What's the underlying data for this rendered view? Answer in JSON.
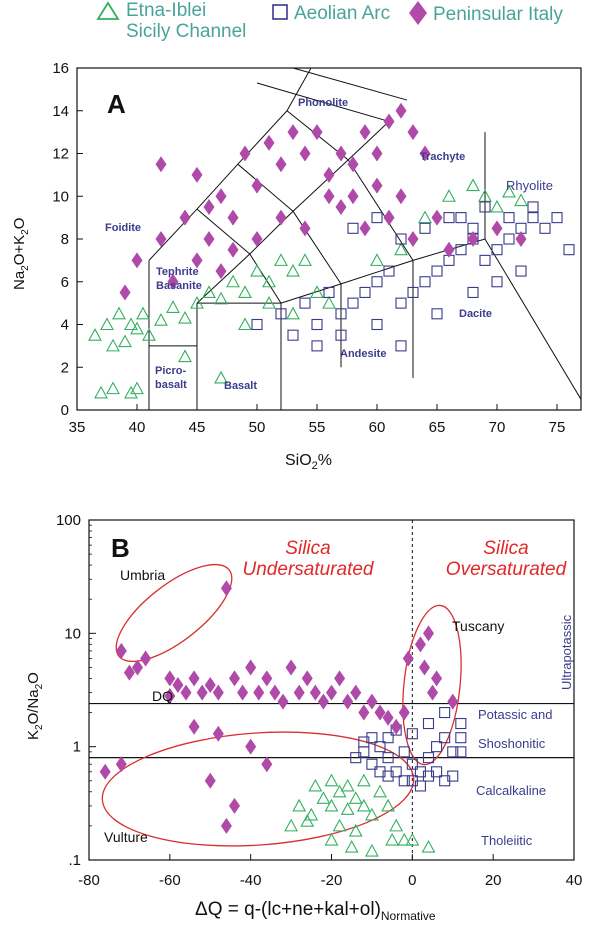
{
  "legend": {
    "etna": "Etna-Iblei",
    "etna2": "Sicily Channel",
    "aeolian": "Aeolian Arc",
    "peninsular": "Peninsular Italy"
  },
  "colors": {
    "etna": "#33b060",
    "aeolian": "#3a3a8a",
    "peninsular": "#b04aa8",
    "ellipse": "#d83030",
    "red_text": "#e02828",
    "field_text": "#3c3c8c",
    "legend_text": "#4aa39a"
  },
  "icons": {
    "etna": "open-triangle",
    "aeolian": "open-square",
    "peninsular": "filled-diamond"
  },
  "chart_data": [
    {
      "type": "scatter",
      "panel": "A",
      "xlabel": "SiO2%",
      "ylabel": "Na2O+K2O",
      "xlim": [
        35,
        77
      ],
      "ylim": [
        0,
        16
      ],
      "xticks": [
        "35",
        "40",
        "45",
        "50",
        "55",
        "60",
        "65",
        "70",
        "75"
      ],
      "yticks": [
        "0",
        "2",
        "4",
        "6",
        "8",
        "10",
        "12",
        "14",
        "16"
      ],
      "field_labels": [
        "Phonolite",
        "Trachyte",
        "Rhyolite",
        "Foidite",
        "Tephrite",
        "Basanite",
        "Dacite",
        "Andesite",
        "Picro-",
        "basalt",
        "Basalt"
      ],
      "grid": false,
      "series": [
        {
          "name": "Etna-Iblei Sicily Channel",
          "points": [
            [
              36.5,
              3.5
            ],
            [
              37.5,
              4
            ],
            [
              38,
              3
            ],
            [
              38.5,
              4.5
            ],
            [
              39,
              3.2
            ],
            [
              39.5,
              4
            ],
            [
              40,
              3.8
            ],
            [
              40.5,
              4.5
            ],
            [
              41,
              3.5
            ],
            [
              42,
              4.2
            ],
            [
              43,
              4.8
            ],
            [
              44,
              4.3
            ],
            [
              45,
              5
            ],
            [
              46,
              5.5
            ],
            [
              47,
              5.2
            ],
            [
              48,
              6
            ],
            [
              49,
              5.5
            ],
            [
              50,
              6.5
            ],
            [
              51,
              6
            ],
            [
              52,
              7
            ],
            [
              53,
              6.5
            ],
            [
              54,
              7
            ],
            [
              49,
              4
            ],
            [
              51,
              5
            ],
            [
              53,
              4.5
            ],
            [
              55,
              5.5
            ],
            [
              56,
              5
            ],
            [
              60,
              7
            ],
            [
              62,
              7.5
            ],
            [
              64,
              9
            ],
            [
              66,
              10
            ],
            [
              68,
              10.5
            ],
            [
              69,
              10
            ],
            [
              70,
              9.5
            ],
            [
              71,
              10.2
            ],
            [
              72,
              9.8
            ],
            [
              38,
              1
            ],
            [
              39.5,
              0.8
            ],
            [
              40,
              1
            ],
            [
              37,
              0.8
            ],
            [
              47,
              1.5
            ],
            [
              44,
              2.5
            ]
          ]
        },
        {
          "name": "Aeolian Arc",
          "points": [
            [
              50,
              4
            ],
            [
              52,
              4.5
            ],
            [
              53,
              3.5
            ],
            [
              54,
              5
            ],
            [
              55,
              4
            ],
            [
              56,
              5.5
            ],
            [
              57,
              4.5
            ],
            [
              58,
              5
            ],
            [
              59,
              5.5
            ],
            [
              60,
              6
            ],
            [
              61,
              6.5
            ],
            [
              62,
              5
            ],
            [
              63,
              5.5
            ],
            [
              64,
              6
            ],
            [
              65,
              6.5
            ],
            [
              66,
              7
            ],
            [
              67,
              7.5
            ],
            [
              68,
              8
            ],
            [
              69,
              7
            ],
            [
              70,
              7.5
            ],
            [
              71,
              8
            ],
            [
              72,
              8.5
            ],
            [
              73,
              9
            ],
            [
              74,
              8.5
            ],
            [
              75,
              9
            ],
            [
              76,
              7.5
            ],
            [
              67,
              9
            ],
            [
              69,
              9.5
            ],
            [
              71,
              9
            ],
            [
              73,
              9.5
            ],
            [
              58,
              8.5
            ],
            [
              60,
              9
            ],
            [
              62,
              8
            ],
            [
              64,
              8.5
            ],
            [
              66,
              9
            ],
            [
              68,
              8.5
            ],
            [
              55,
              3
            ],
            [
              57,
              3.5
            ],
            [
              60,
              4
            ],
            [
              62,
              3
            ],
            [
              65,
              4.5
            ],
            [
              68,
              5.5
            ],
            [
              70,
              6
            ],
            [
              72,
              6.5
            ]
          ]
        },
        {
          "name": "Peninsular Italy",
          "points": [
            [
              39,
              5.5
            ],
            [
              40,
              7
            ],
            [
              42,
              8
            ],
            [
              44,
              9
            ],
            [
              45,
              11
            ],
            [
              46,
              9.5
            ],
            [
              47,
              10
            ],
            [
              48,
              9
            ],
            [
              49,
              12
            ],
            [
              50,
              10.5
            ],
            [
              51,
              12.5
            ],
            [
              52,
              11.5
            ],
            [
              53,
              13
            ],
            [
              54,
              12
            ],
            [
              55,
              13
            ],
            [
              56,
              11
            ],
            [
              57,
              12
            ],
            [
              58,
              11.5
            ],
            [
              59,
              13
            ],
            [
              60,
              12
            ],
            [
              61,
              13.5
            ],
            [
              62,
              14
            ],
            [
              63,
              13
            ],
            [
              64,
              12
            ],
            [
              65,
              9
            ],
            [
              57,
              9.5
            ],
            [
              59,
              8.5
            ],
            [
              61,
              9
            ],
            [
              63,
              8
            ],
            [
              66,
              7.5
            ],
            [
              68,
              8
            ],
            [
              70,
              8.5
            ],
            [
              72,
              8
            ],
            [
              46,
              8
            ],
            [
              48,
              7.5
            ],
            [
              50,
              8
            ],
            [
              52,
              9
            ],
            [
              54,
              8.5
            ],
            [
              56,
              10
            ],
            [
              58,
              10
            ],
            [
              60,
              10.5
            ],
            [
              62,
              10
            ],
            [
              43,
              6
            ],
            [
              45,
              7
            ],
            [
              47,
              6.5
            ],
            [
              42,
              11.5
            ]
          ]
        }
      ]
    },
    {
      "type": "scatter",
      "panel": "B",
      "xlabel": "ΔQ = q-(lc+ne+kal+ol)",
      "xlabel_sub": "Normative",
      "ylabel": "K2O/Na2O",
      "xlim": [
        -80,
        40
      ],
      "ylim": [
        0.1,
        100
      ],
      "yscale": "log",
      "xticks": [
        "-80",
        "-60",
        "-40",
        "-20",
        "0",
        "20",
        "40"
      ],
      "yticks": [
        ".1",
        "1",
        "10",
        "100"
      ],
      "grid": false,
      "annotations": {
        "silica_under": [
          "Silica",
          "Undersaturated"
        ],
        "silica_over": [
          "Silica",
          "Oversaturated"
        ],
        "umbria": "Umbria",
        "tuscany": "Tuscany",
        "vulture": "Vulture",
        "dq": "DQ",
        "ultrapotassic": "Ultrapotassic",
        "potassic": "Potassic and",
        "shoshonitic": "Shoshonitic",
        "calcalkaline": "Calcalkaline",
        "tholeiitic": "Tholeiitic"
      },
      "series": [
        {
          "name": "Etna-Iblei Sicily Channel",
          "points": [
            [
              -30,
              0.2
            ],
            [
              -28,
              0.3
            ],
            [
              -25,
              0.25
            ],
            [
              -22,
              0.35
            ],
            [
              -20,
              0.3
            ],
            [
              -18,
              0.4
            ],
            [
              -16,
              0.28
            ],
            [
              -14,
              0.35
            ],
            [
              -12,
              0.3
            ],
            [
              -10,
              0.25
            ],
            [
              -8,
              0.4
            ],
            [
              -6,
              0.3
            ],
            [
              -4,
              0.2
            ],
            [
              -2,
              0.15
            ],
            [
              0,
              0.15
            ],
            [
              -24,
              0.45
            ],
            [
              -20,
              0.5
            ],
            [
              -16,
              0.45
            ],
            [
              -12,
              0.5
            ],
            [
              -20,
              0.15
            ],
            [
              -15,
              0.13
            ],
            [
              -10,
              0.12
            ],
            [
              -5,
              0.15
            ],
            [
              4,
              0.13
            ],
            [
              -26,
              0.22
            ],
            [
              -18,
              0.2
            ],
            [
              -14,
              0.18
            ]
          ]
        },
        {
          "name": "Aeolian Arc",
          "points": [
            [
              -10,
              1.2
            ],
            [
              -8,
              1
            ],
            [
              -6,
              0.8
            ],
            [
              -4,
              1.4
            ],
            [
              -2,
              0.9
            ],
            [
              0,
              0.7
            ],
            [
              2,
              0.6
            ],
            [
              4,
              0.8
            ],
            [
              6,
              1
            ],
            [
              8,
              1.2
            ],
            [
              10,
              0.9
            ],
            [
              12,
              1.6
            ],
            [
              -12,
              0.9
            ],
            [
              -10,
              0.7
            ],
            [
              -8,
              0.6
            ],
            [
              -6,
              0.55
            ],
            [
              -4,
              0.6
            ],
            [
              -2,
              0.5
            ],
            [
              0,
              0.5
            ],
            [
              2,
              0.45
            ],
            [
              4,
              0.55
            ],
            [
              6,
              0.6
            ],
            [
              8,
              0.5
            ],
            [
              10,
              0.55
            ],
            [
              -14,
              0.8
            ],
            [
              -12,
              1.1
            ],
            [
              -6,
              1.2
            ],
            [
              0,
              1.3
            ],
            [
              4,
              1.6
            ],
            [
              8,
              2
            ],
            [
              12,
              1.2
            ],
            [
              12,
              0.9
            ]
          ]
        },
        {
          "name": "Peninsular Italy",
          "points": [
            [
              -76,
              0.6
            ],
            [
              -72,
              7
            ],
            [
              -70,
              4.5
            ],
            [
              -68,
              5
            ],
            [
              -66,
              6
            ],
            [
              -60,
              4
            ],
            [
              -58,
              3.5
            ],
            [
              -56,
              3
            ],
            [
              -54,
              4
            ],
            [
              -52,
              3
            ],
            [
              -50,
              3.5
            ],
            [
              -48,
              3
            ],
            [
              -46,
              25
            ],
            [
              -44,
              4
            ],
            [
              -42,
              3
            ],
            [
              -40,
              5
            ],
            [
              -38,
              3
            ],
            [
              -36,
              4
            ],
            [
              -34,
              3
            ],
            [
              -32,
              2.5
            ],
            [
              -30,
              5
            ],
            [
              -28,
              3
            ],
            [
              -26,
              4
            ],
            [
              -24,
              3
            ],
            [
              -22,
              2.5
            ],
            [
              -20,
              3
            ],
            [
              -18,
              4
            ],
            [
              -16,
              2.5
            ],
            [
              -14,
              3
            ],
            [
              -12,
              2
            ],
            [
              -10,
              2.5
            ],
            [
              -8,
              2
            ],
            [
              -6,
              1.8
            ],
            [
              -4,
              1.5
            ],
            [
              -2,
              2
            ],
            [
              -1,
              6
            ],
            [
              2,
              8
            ],
            [
              4,
              10
            ],
            [
              3,
              5
            ],
            [
              5,
              3
            ],
            [
              6,
              4
            ],
            [
              -50,
              0.5
            ],
            [
              -44,
              0.3
            ],
            [
              -40,
              1
            ],
            [
              -36,
              0.7
            ],
            [
              -48,
              1.3
            ],
            [
              -54,
              1.5
            ],
            [
              -72,
              0.7
            ],
            [
              -60,
              2.8
            ],
            [
              -46,
              0.2
            ],
            [
              10,
              2.5
            ]
          ]
        }
      ]
    }
  ]
}
